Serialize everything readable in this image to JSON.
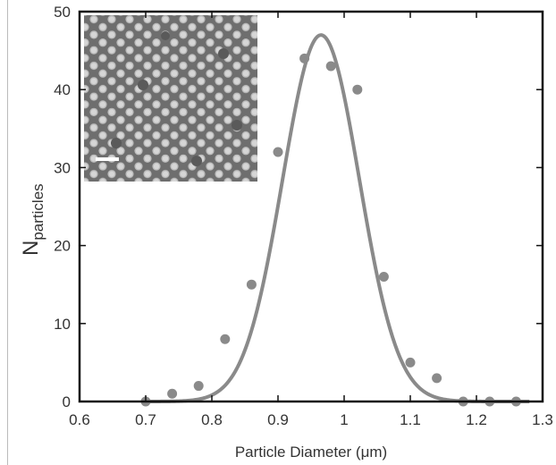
{
  "chart_data": {
    "type": "scatter",
    "title": "",
    "xlabel": "Particle Diameter (μm)",
    "ylabel_main": "N",
    "ylabel_sub": "particles",
    "xlim": [
      0.6,
      1.3
    ],
    "ylim": [
      0,
      50
    ],
    "xticks": [
      0.6,
      0.7,
      0.8,
      0.9,
      1,
      1.1,
      1.2,
      1.3
    ],
    "xtick_labels": [
      "0.6",
      "0.7",
      "0.8",
      "0.9",
      "1",
      "1.1",
      "1.2",
      "1.3"
    ],
    "yticks": [
      0,
      10,
      20,
      30,
      40,
      50
    ],
    "ytick_labels": [
      "0",
      "10",
      "20",
      "30",
      "40",
      "50"
    ],
    "grid": false,
    "series": [
      {
        "type": "scatter",
        "x": [
          0.7,
          0.74,
          0.78,
          0.82,
          0.86,
          0.9,
          0.94,
          0.98,
          1.02,
          1.06,
          1.1,
          1.14,
          1.18,
          1.22,
          1.26
        ],
        "y": [
          0,
          1,
          2,
          8,
          15,
          32,
          44,
          43,
          40,
          16,
          5,
          3,
          0,
          0,
          0
        ]
      },
      {
        "type": "line",
        "fit": "gaussian",
        "amplitude": 47,
        "center": 0.965,
        "sigma": 0.058
      }
    ],
    "colors": {
      "points": "#8a8a8a",
      "fit_line": "#8a8a8a",
      "axes": "#111111"
    },
    "inset": {
      "kind": "SEM micrograph of close-packed spheres",
      "scale_bar": true
    }
  }
}
